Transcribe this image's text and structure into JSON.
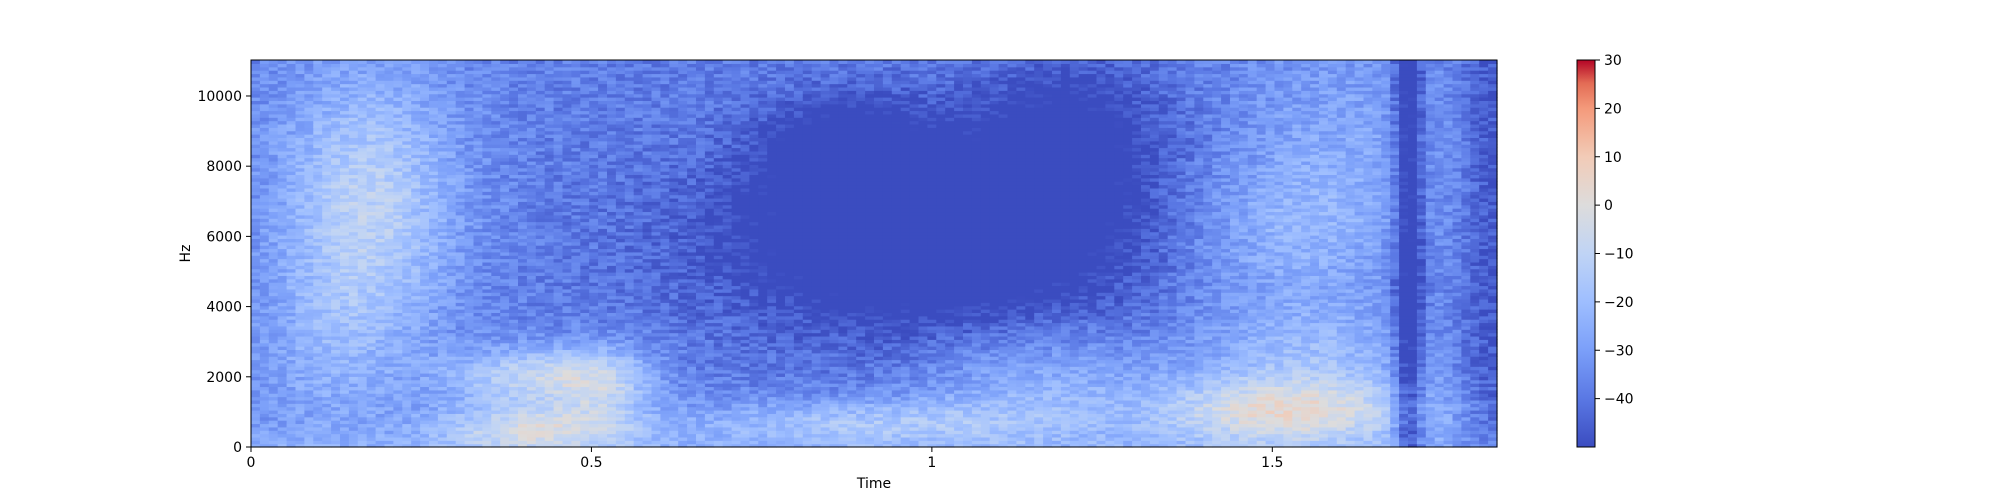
{
  "chart_data": {
    "type": "heatmap",
    "title": "",
    "xlabel": "Time",
    "ylabel": "Hz",
    "xlim": [
      0,
      1.83
    ],
    "ylim": [
      0,
      11025
    ],
    "x_ticks": [
      {
        "value": 0,
        "label": "0"
      },
      {
        "value": 0.5,
        "label": "0.5"
      },
      {
        "value": 1,
        "label": "1"
      },
      {
        "value": 1.5,
        "label": "1.5"
      }
    ],
    "y_ticks": [
      {
        "value": 0,
        "label": "0"
      },
      {
        "value": 2000,
        "label": "2000"
      },
      {
        "value": 4000,
        "label": "4000"
      },
      {
        "value": 6000,
        "label": "6000"
      },
      {
        "value": 8000,
        "label": "8000"
      },
      {
        "value": 10000,
        "label": "10000"
      }
    ],
    "colormap": "coolwarm",
    "colorbar": {
      "vmin": -50,
      "vmax": 30,
      "ticks": [
        {
          "value": 30,
          "label": "30"
        },
        {
          "value": 20,
          "label": "20"
        },
        {
          "value": 10,
          "label": "10"
        },
        {
          "value": 0,
          "label": "0"
        },
        {
          "value": -10,
          "label": "−10"
        },
        {
          "value": -20,
          "label": "−20"
        },
        {
          "value": -30,
          "label": "−30"
        },
        {
          "value": -40,
          "label": "−40"
        }
      ]
    },
    "grid": false,
    "colors": {
      "low": "#3b4cc0",
      "mid": "#dddcdc",
      "high": "#b40426"
    }
  }
}
